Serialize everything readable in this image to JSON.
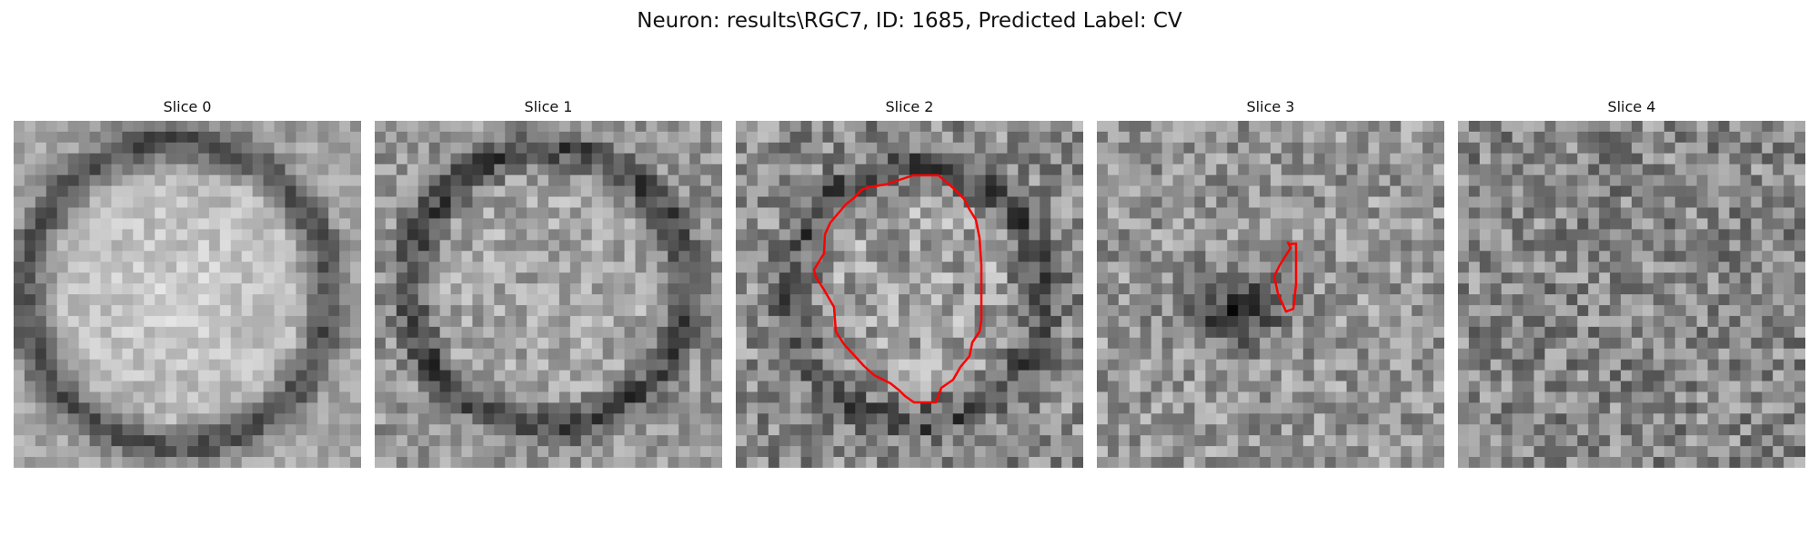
{
  "figure": {
    "title": "Neuron: results\\RGC7, ID: 1685, Predicted Label: CV"
  },
  "slices": [
    {
      "title": "Slice 0",
      "image": "grayscale-microscopy-slice",
      "has_contour": false
    },
    {
      "title": "Slice 1",
      "image": "grayscale-microscopy-slice",
      "has_contour": false
    },
    {
      "title": "Slice 2",
      "image": "grayscale-microscopy-slice",
      "has_contour": true,
      "contour_color": "#ff0000"
    },
    {
      "title": "Slice 3",
      "image": "grayscale-microscopy-slice",
      "has_contour": true,
      "contour_color": "#ff0000"
    },
    {
      "title": "Slice 4",
      "image": "grayscale-microscopy-slice",
      "has_contour": false
    }
  ]
}
